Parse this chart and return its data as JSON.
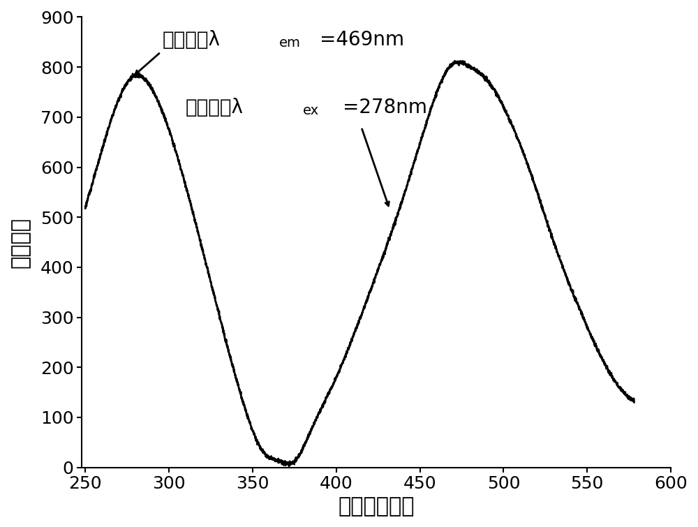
{
  "title": "",
  "xlabel": "波长（纳米）",
  "ylabel": "相对强度",
  "xlim": [
    248,
    600
  ],
  "ylim": [
    0,
    900
  ],
  "xticks": [
    250,
    300,
    350,
    400,
    450,
    500,
    550,
    600
  ],
  "yticks": [
    0,
    100,
    200,
    300,
    400,
    500,
    600,
    700,
    800,
    900
  ],
  "annotation1_text": "监控波长λ",
  "annotation1_sub": "em",
  "annotation1_rest": "=469nm",
  "annotation2_text": "激发波长λ",
  "annotation2_sub": "ex",
  "annotation2_rest": "=278nm",
  "line_color": "#000000",
  "background_color": "#ffffff",
  "font_size_labels": 22,
  "font_size_ticks": 18,
  "font_size_annotation": 20
}
